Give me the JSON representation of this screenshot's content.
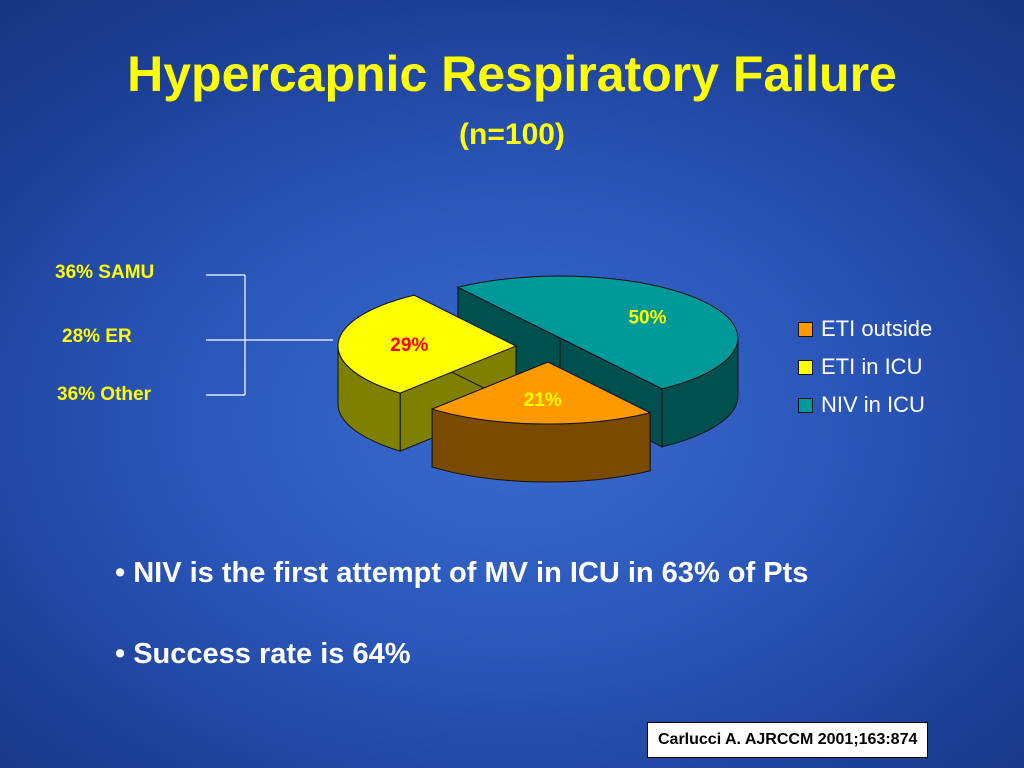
{
  "slide": {
    "title": "Hypercapnic Respiratory Failure",
    "subtitle": "(n=100)",
    "bullets": [
      "• NIV is the first attempt of MV in ICU in 63% of Pts",
      "• Success rate is 64%"
    ],
    "citation": "Carlucci A. AJRCCM 2001;163:874"
  },
  "side_breakdown": {
    "items": [
      "36% SAMU",
      "28% ER",
      "36% Other"
    ]
  },
  "colors": {
    "title": "#ffff00",
    "eti_outside": "#ff9900",
    "eti_in_icu": "#ffff00",
    "niv_in_icu": "#009999"
  },
  "chart_data": {
    "type": "pie",
    "style": "3d-exploded",
    "categories": [
      "ETI outside",
      "ETI in ICU",
      "NIV in ICU"
    ],
    "values": [
      21,
      29,
      50
    ],
    "data_labels": [
      "21%",
      "29%",
      "50%"
    ],
    "legend": "right"
  }
}
